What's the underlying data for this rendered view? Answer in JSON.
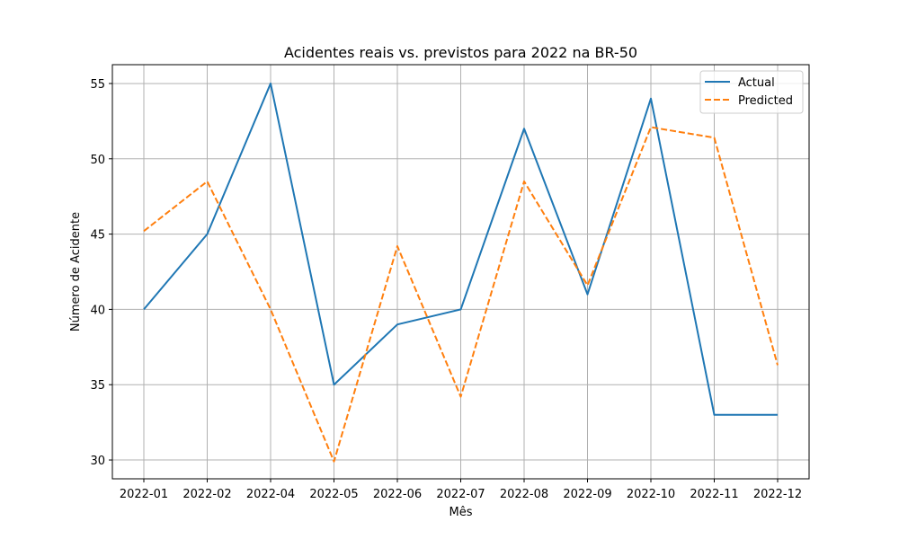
{
  "chart_data": {
    "type": "line",
    "title": "Acidentes reais vs. previstos para 2022 na BR-50",
    "xlabel": "Mês",
    "ylabel": "Número de Acidente",
    "categories": [
      "2022-01",
      "2022-02",
      "2022-04",
      "2022-05",
      "2022-06",
      "2022-07",
      "2022-08",
      "2022-09",
      "2022-10",
      "2022-11",
      "2022-12"
    ],
    "ylim": [
      28.75,
      56.25
    ],
    "yticks": [
      30,
      35,
      40,
      45,
      50,
      55
    ],
    "grid": true,
    "legend_position": "top-right",
    "series": [
      {
        "name": "Actual",
        "style": "solid",
        "color": "#1f77b4",
        "values": [
          40,
          45,
          55,
          35,
          39,
          40,
          52,
          41,
          54,
          33,
          33
        ]
      },
      {
        "name": "Predicted",
        "style": "dashed",
        "color": "#ff7f0e",
        "values": [
          45.2,
          48.5,
          40.0,
          29.9,
          44.2,
          34.2,
          48.5,
          41.6,
          52.1,
          51.4,
          36.3
        ]
      }
    ]
  }
}
